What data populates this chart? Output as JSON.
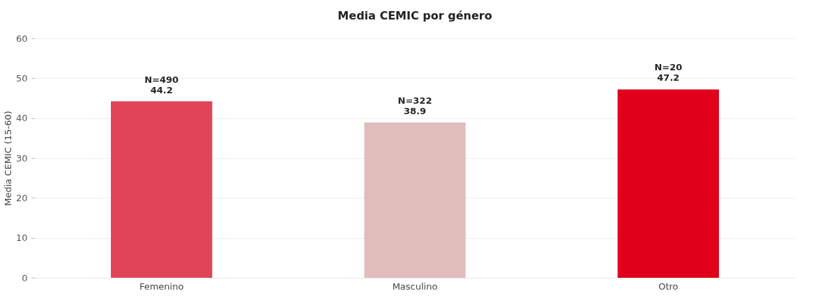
{
  "chart_data": {
    "type": "bar",
    "title": "Media CEMIC por género",
    "ylabel": "Media CEMIC (15-60)",
    "categories": [
      "Femenino",
      "Masculino",
      "Otro"
    ],
    "values": [
      44.2,
      38.9,
      47.2
    ],
    "colors": [
      "#e04457",
      "#e0bcbb",
      "#e0001b"
    ],
    "value_labels": [
      "N=490\n44.2",
      "N=322\n38.9",
      "N=20\n47.2"
    ],
    "ylim": [
      0,
      60
    ],
    "yticks": [
      0,
      10,
      20,
      30,
      40,
      50,
      60
    ],
    "grid": "y"
  }
}
